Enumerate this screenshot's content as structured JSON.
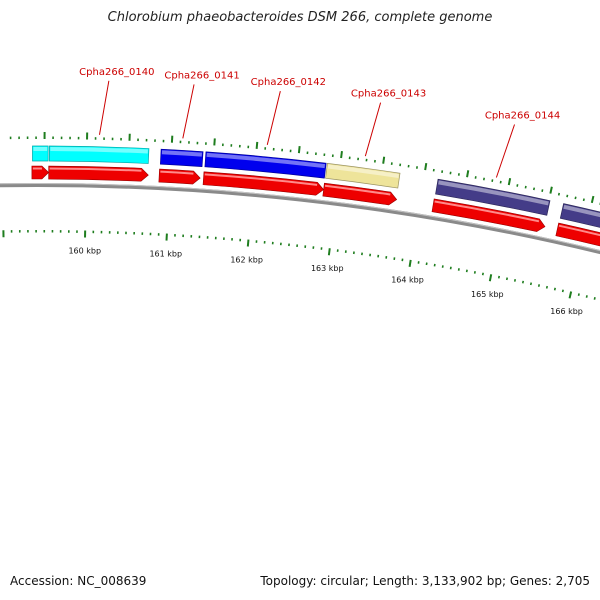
{
  "title": "Chlorobium phaeobacteroides DSM 266, complete genome",
  "footer": {
    "accession_label": "Accession:",
    "accession": "NC_008639",
    "topology_text": "Topology: circular; Length: 3,133,902 bp; Genes: 2,705"
  },
  "chart_data": {
    "type": "genome-map",
    "genes": [
      {
        "name": "",
        "color": "#00ffff",
        "start_kbp": 159.35,
        "end_kbp": 159.55
      },
      {
        "name": "Cpha266_0140",
        "color": "#00ffff",
        "start_kbp": 159.55,
        "end_kbp": 160.74
      },
      {
        "name": "Cpha266_0141",
        "color": "#0000ee",
        "start_kbp": 160.87,
        "end_kbp": 161.38
      },
      {
        "name": "Cpha266_0142",
        "color": "#0000ee",
        "start_kbp": 161.4,
        "end_kbp": 162.84
      },
      {
        "name": "Cpha266_0143",
        "color": "#eee49a",
        "start_kbp": 162.84,
        "end_kbp": 163.72
      },
      {
        "name": "Cpha266_0144",
        "color": "#443c88",
        "start_kbp": 164.16,
        "end_kbp": 165.52
      },
      {
        "name": "",
        "color": "#443c88",
        "start_kbp": 165.67,
        "end_kbp": 166.5
      },
      {
        "name": "",
        "color": "#443c88",
        "start_kbp": 166.55,
        "end_kbp": 167.0
      }
    ],
    "cds": [
      {
        "start_kbp": 159.35,
        "end_kbp": 159.55
      },
      {
        "start_kbp": 159.55,
        "end_kbp": 160.74
      },
      {
        "start_kbp": 160.87,
        "end_kbp": 161.36
      },
      {
        "start_kbp": 161.4,
        "end_kbp": 162.84
      },
      {
        "start_kbp": 162.84,
        "end_kbp": 163.72
      },
      {
        "start_kbp": 164.16,
        "end_kbp": 165.52
      },
      {
        "start_kbp": 165.67,
        "end_kbp": 166.5
      },
      {
        "start_kbp": 166.55,
        "end_kbp": 167.0
      }
    ],
    "ticks": [
      {
        "kbp": 160,
        "label": "160 kbp"
      },
      {
        "kbp": 161,
        "label": "161 kbp"
      },
      {
        "kbp": 162,
        "label": "162 kbp"
      },
      {
        "kbp": 163,
        "label": "163 kbp"
      },
      {
        "kbp": 164,
        "label": "164 kbp"
      },
      {
        "kbp": 165,
        "label": "165 kbp"
      },
      {
        "kbp": 166,
        "label": "166 kbp"
      }
    ]
  }
}
